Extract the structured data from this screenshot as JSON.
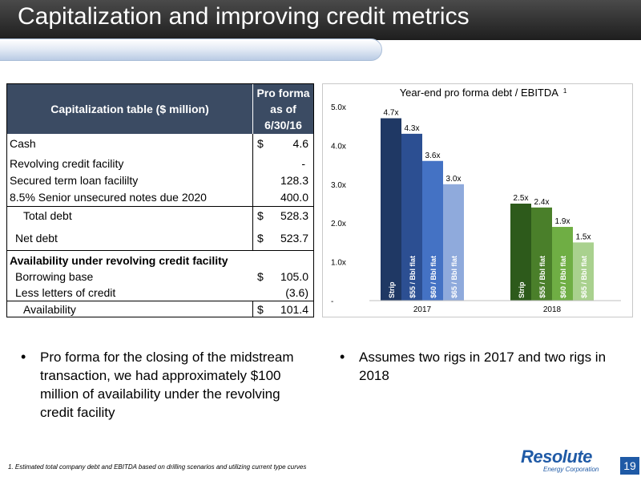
{
  "header": {
    "title": "Capitalization and improving credit metrics"
  },
  "table": {
    "header_label": "Capitalization table ($ million)",
    "header_col": [
      "Pro forma",
      "as of",
      "6/30/16"
    ],
    "rows": [
      {
        "label": "Cash",
        "currency": "$",
        "value": "4.6"
      },
      {
        "label": "Revolving credit facility",
        "currency": "",
        "value": "-"
      },
      {
        "label": "Secured term loan facililty",
        "currency": "",
        "value": "128.3"
      },
      {
        "label": "8.5% Senior unsecured notes due 2020",
        "currency": "",
        "value": "400.0"
      },
      {
        "label": "Total debt",
        "currency": "$",
        "value": "528.3"
      },
      {
        "label": "Net debt",
        "currency": "$",
        "value": "523.7"
      },
      {
        "label": "Availability under revolving credit facility",
        "currency": "",
        "value": ""
      },
      {
        "label": "Borrowing base",
        "currency": "$",
        "value": "105.0"
      },
      {
        "label": "Less letters of credit",
        "currency": "",
        "value": "(3.6)"
      },
      {
        "label": "Availability",
        "currency": "$",
        "value": "101.4"
      }
    ]
  },
  "chart_data": {
    "type": "bar",
    "title": "Year-end pro forma debt / EBITDA",
    "title_superscript": "1",
    "y_ticks": [
      "-",
      "1.0x",
      "2.0x",
      "3.0x",
      "4.0x",
      "5.0x"
    ],
    "ylim": [
      0,
      5
    ],
    "groups": [
      {
        "name": "2017",
        "bars": [
          {
            "label": "Strip",
            "value": 4.7,
            "data_label": "4.7x",
            "color": "#1f3864"
          },
          {
            "label": "$55 / Bbl flat",
            "value": 4.3,
            "data_label": "4.3x",
            "color": "#2c4f92"
          },
          {
            "label": "$60 / Bbl flat",
            "value": 3.6,
            "data_label": "3.6x",
            "color": "#4472c4"
          },
          {
            "label": "$65 / Bbl flat",
            "value": 3.0,
            "data_label": "3.0x",
            "color": "#8faadc"
          }
        ]
      },
      {
        "name": "2018",
        "bars": [
          {
            "label": "Strip",
            "value": 2.5,
            "data_label": "2.5x",
            "color": "#2d5a1b"
          },
          {
            "label": "$55 / Bbl flat",
            "value": 2.4,
            "data_label": "2.4x",
            "color": "#4a7f2a"
          },
          {
            "label": "$60 / Bbl flat",
            "value": 1.9,
            "data_label": "1.9x",
            "color": "#6fae44"
          },
          {
            "label": "$65 / Bbl flat",
            "value": 1.5,
            "data_label": "1.5x",
            "color": "#a9d18e"
          }
        ]
      }
    ]
  },
  "bullets": {
    "left": "Pro forma for the closing of the midstream transaction, we had approximately $100 million of availability under the revolving credit facility",
    "right": "Assumes two rigs in 2017 and two rigs in 2018",
    "dot": "•"
  },
  "footer": {
    "footnote": "1. Estimated total company debt and EBITDA based on drilling scenarios and utilizing current type curves",
    "logo_word": "Resolute",
    "logo_sub": "Energy Corporation",
    "page_number": "19"
  }
}
